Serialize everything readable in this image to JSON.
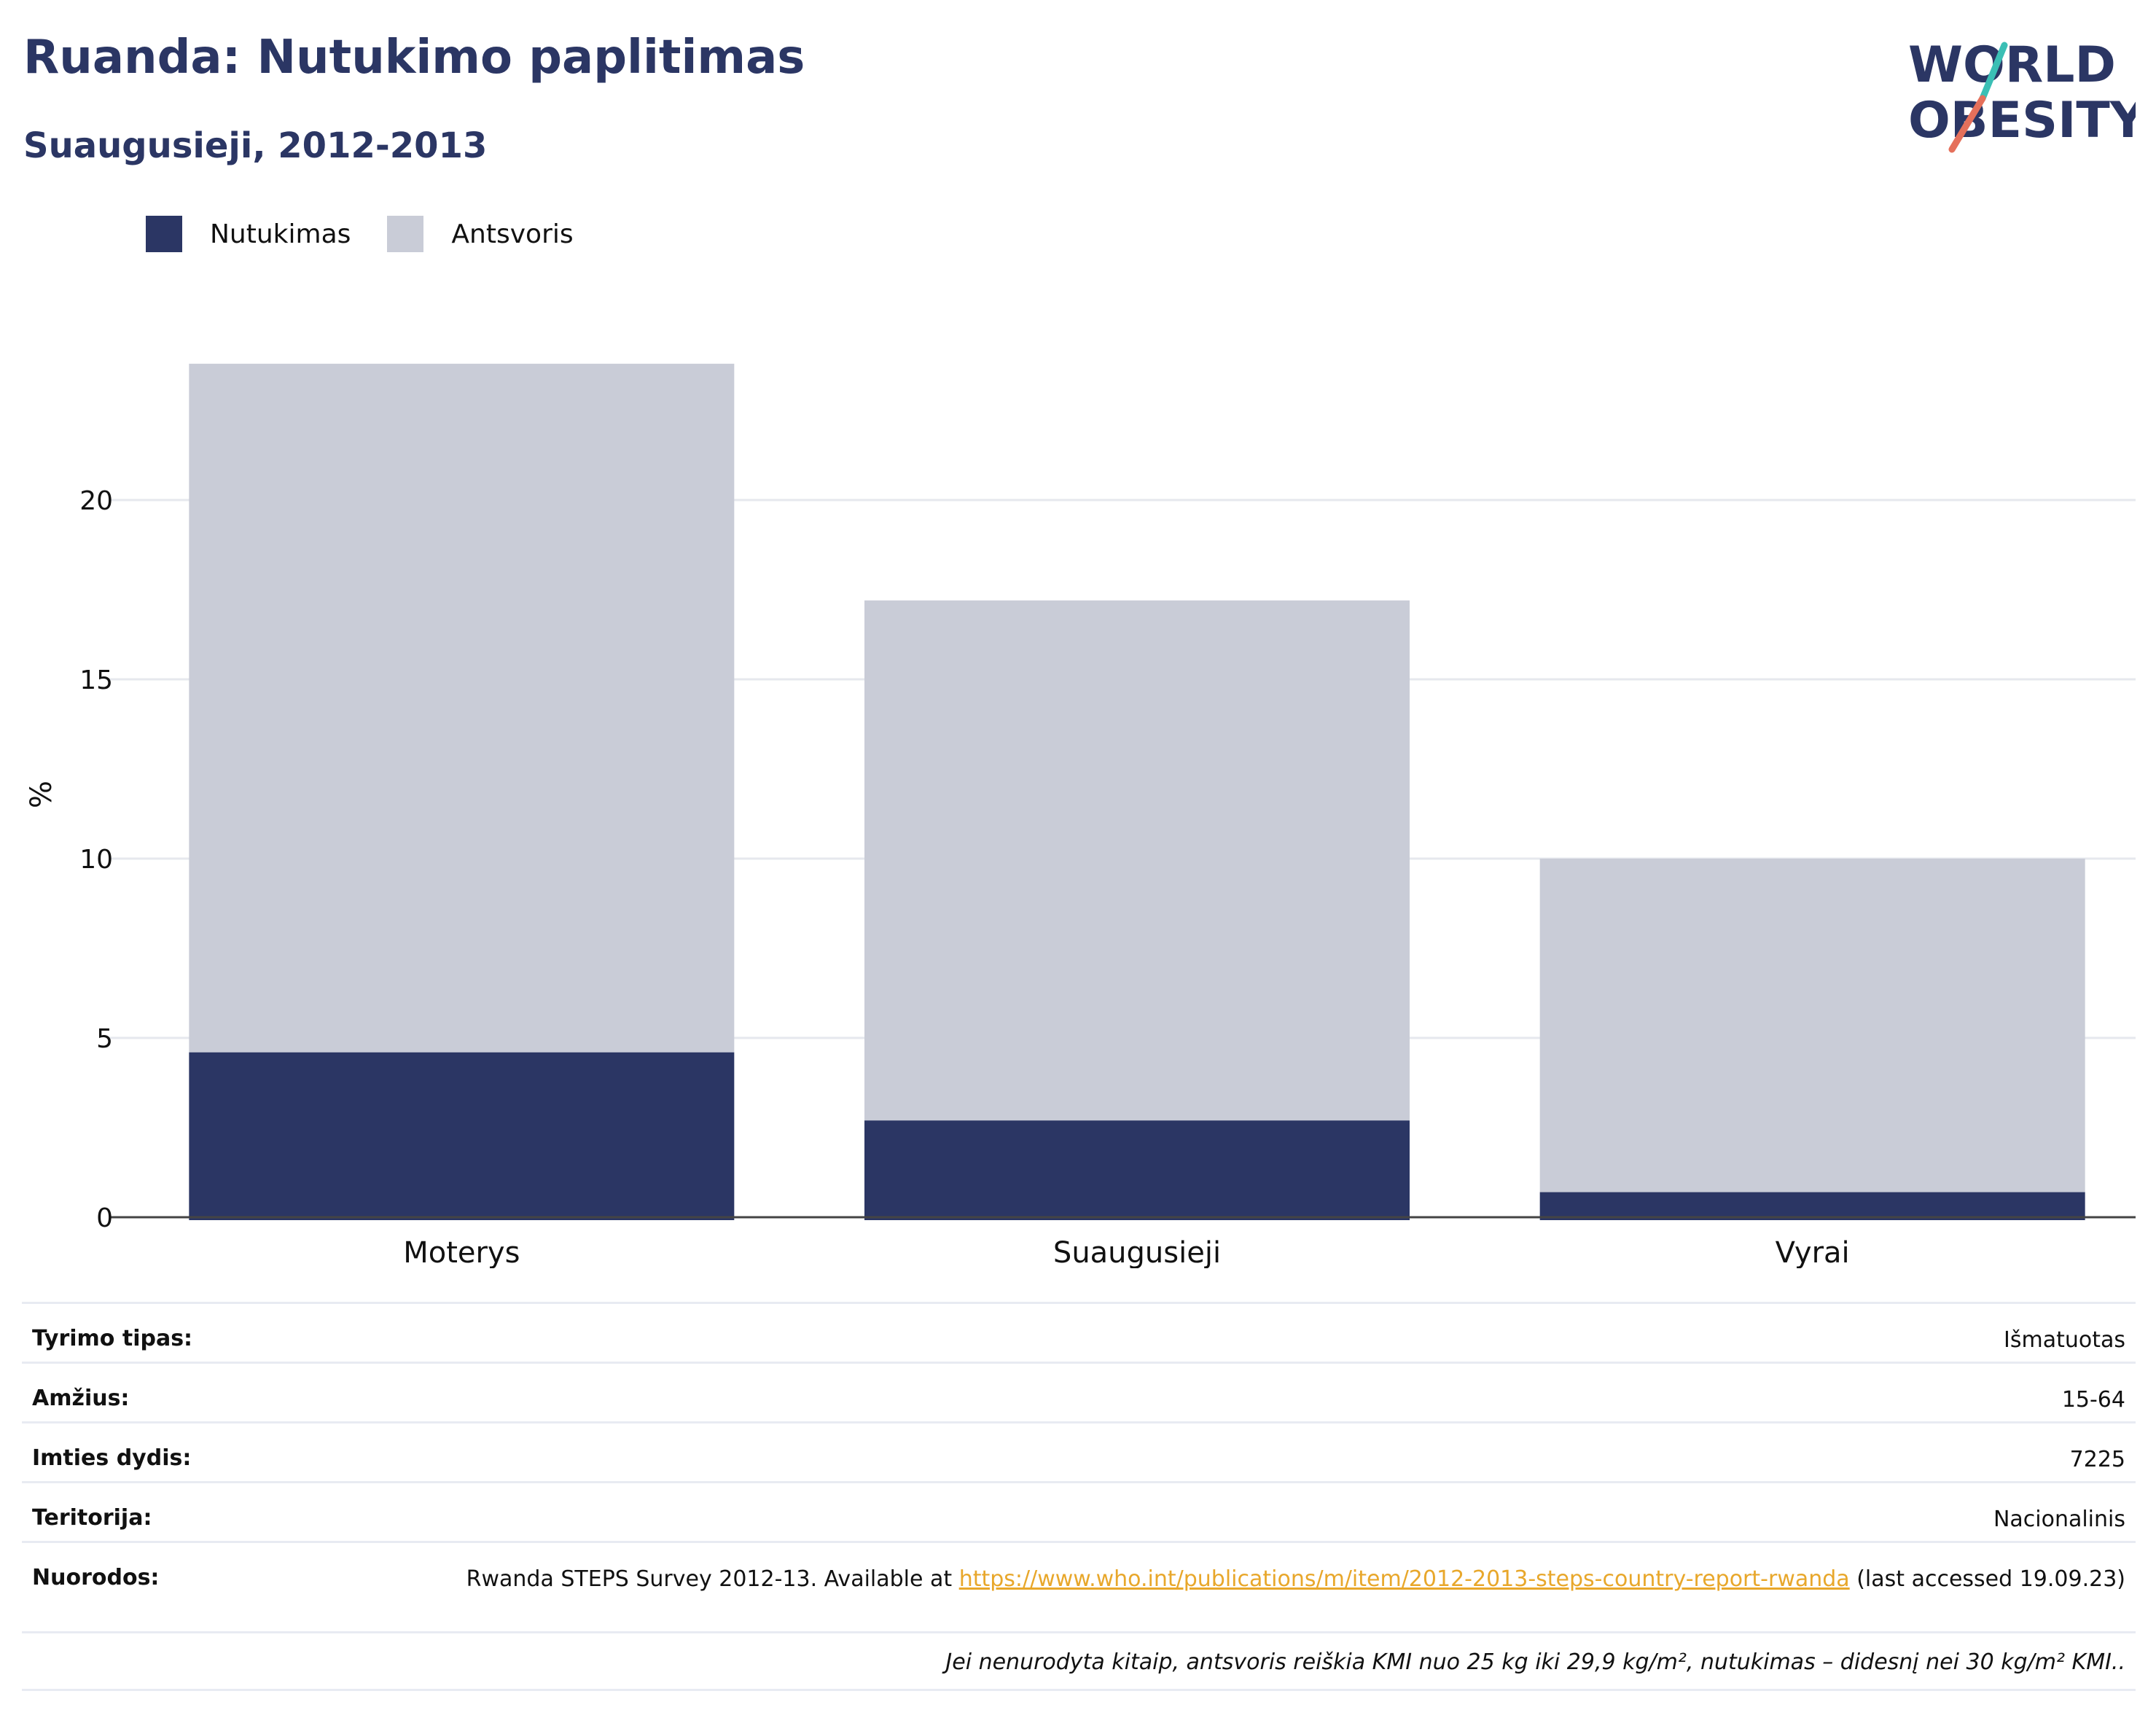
{
  "header": {
    "title": "Ruanda: Nutukimo paplitimas",
    "subtitle": "Suaugusieji, 2012-2013",
    "logo_line1": "WORLD",
    "logo_line2": "OBESITY"
  },
  "colors": {
    "obesity": "#2b3664",
    "overweight": "#c9ccd7",
    "title": "#2b3664",
    "link": "#e8a72b",
    "logo_teal": "#3bbfb5",
    "logo_coral": "#e5705b"
  },
  "chart_data": {
    "type": "bar",
    "stacked": true,
    "categories": [
      "Moterys",
      "Suaugusieji",
      "Vyrai"
    ],
    "series": [
      {
        "name": "Nutukimas",
        "values": [
          4.6,
          2.7,
          0.7
        ]
      },
      {
        "name": "Antsvoris",
        "values": [
          19.2,
          14.5,
          9.3
        ]
      }
    ],
    "ylabel": "%",
    "yticks": [
      0,
      5,
      10,
      15,
      20
    ],
    "ylim": [
      0,
      25
    ],
    "grid": true,
    "legend_position": "top-left"
  },
  "info": {
    "rows": [
      {
        "key": "Tyrimo tipas:",
        "value": "Išmatuotas"
      },
      {
        "key": "Amžius:",
        "value": "15-64"
      },
      {
        "key": "Imties dydis:",
        "value": "7225"
      },
      {
        "key": "Teritorija:",
        "value": "Nacionalinis"
      }
    ],
    "refs_key": "Nuorodos:",
    "refs_pre": "Rwanda STEPS Survey 2012-13. Available at ",
    "refs_link": "https://www.who.int/publications/m/item/2012-2013-steps-country-report-rwanda",
    "refs_post": " (last accessed 19.09.23)",
    "note": "Jei nenurodyta kitaip, antsvoris reiškia KMI nuo 25 kg iki 29,9 kg/m², nutukimas – didesnį nei 30 kg/m² KMI.."
  }
}
